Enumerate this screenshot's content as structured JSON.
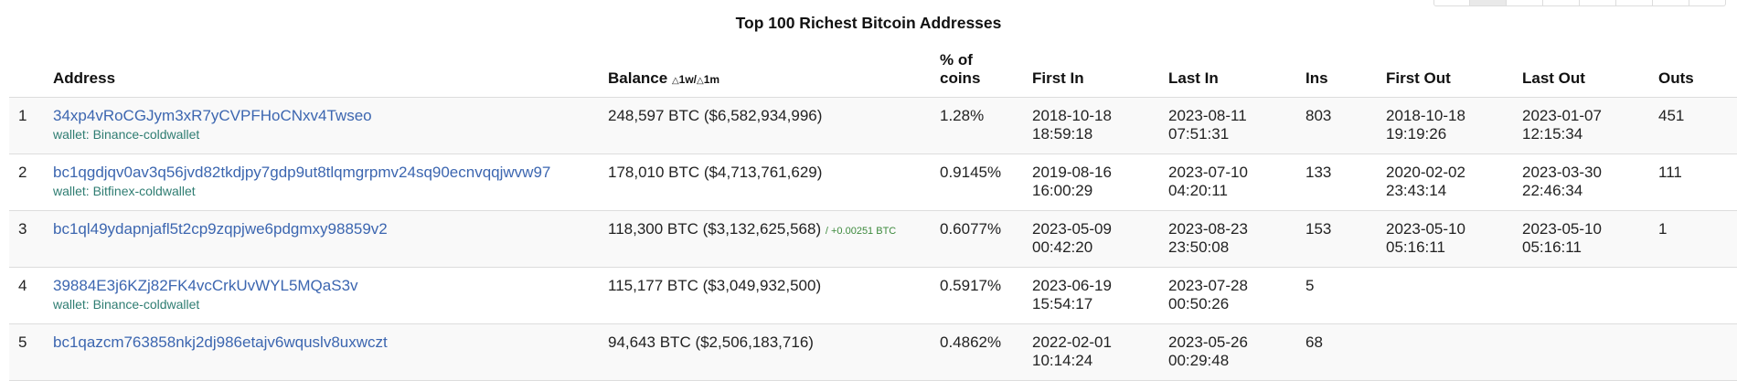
{
  "title": "Top 100 Richest Bitcoin Addresses",
  "pager": {
    "buttons": [
      "",
      "",
      "",
      "",
      "",
      "",
      "",
      ""
    ],
    "active_index": 1
  },
  "headers": {
    "rank": "",
    "address": "Address",
    "balance": "Balance",
    "balance_delta": "1w/",
    "balance_delta2": "1m",
    "delta_symbol": "△",
    "pct_line1": "% of",
    "pct_line2": "coins",
    "first_in": "First In",
    "last_in": "Last In",
    "ins": "Ins",
    "first_out": "First Out",
    "last_out": "Last Out",
    "outs": "Outs"
  },
  "rows": [
    {
      "rank": "1",
      "address": "34xp4vRoCGJym3xR7yCVPFHoCNxv4Twseo",
      "wallet": "wallet: Binance-coldwallet",
      "balance": "248,597 BTC ($6,582,934,996)",
      "change": "",
      "pct": "1.28%",
      "first_in_date": "2018-10-18",
      "first_in_time": "18:59:18",
      "last_in_date": "2023-08-11",
      "last_in_time": "07:51:31",
      "ins": "803",
      "first_out_date": "2018-10-18",
      "first_out_time": "19:19:26",
      "last_out_date": "2023-01-07",
      "last_out_time": "12:15:34",
      "outs": "451"
    },
    {
      "rank": "2",
      "address": "bc1qgdjqv0av3q56jvd82tkdjpy7gdp9ut8tlqmgrpmv24sq90ecnvqqjwvw97",
      "wallet": "wallet: Bitfinex-coldwallet",
      "balance": "178,010 BTC ($4,713,761,629)",
      "change": "",
      "pct": "0.9145%",
      "first_in_date": "2019-08-16",
      "first_in_time": "16:00:29",
      "last_in_date": "2023-07-10",
      "last_in_time": "04:20:11",
      "ins": "133",
      "first_out_date": "2020-02-02",
      "first_out_time": "23:43:14",
      "last_out_date": "2023-03-30",
      "last_out_time": "22:46:34",
      "outs": "111"
    },
    {
      "rank": "3",
      "address": "bc1ql49ydapnjafl5t2cp9zqpjwe6pdgmxy98859v2",
      "wallet": "",
      "balance": "118,300 BTC ($3,132,625,568)",
      "change": "/ +0.00251 BTC",
      "pct": "0.6077%",
      "first_in_date": "2023-05-09",
      "first_in_time": "00:42:20",
      "last_in_date": "2023-08-23",
      "last_in_time": "23:50:08",
      "ins": "153",
      "first_out_date": "2023-05-10",
      "first_out_time": "05:16:11",
      "last_out_date": "2023-05-10",
      "last_out_time": "05:16:11",
      "outs": "1"
    },
    {
      "rank": "4",
      "address": "39884E3j6KZj82FK4vcCrkUvWYL5MQaS3v",
      "wallet": "wallet: Binance-coldwallet",
      "balance": "115,177 BTC ($3,049,932,500)",
      "change": "",
      "pct": "0.5917%",
      "first_in_date": "2023-06-19",
      "first_in_time": "15:54:17",
      "last_in_date": "2023-07-28",
      "last_in_time": "00:50:26",
      "ins": "5",
      "first_out_date": "",
      "first_out_time": "",
      "last_out_date": "",
      "last_out_time": "",
      "outs": ""
    },
    {
      "rank": "5",
      "address": "bc1qazcm763858nkj2dj986etajv6wquslv8uxwczt",
      "wallet": "",
      "balance": "94,643 BTC ($2,506,183,716)",
      "change": "",
      "pct": "0.4862%",
      "first_in_date": "2022-02-01",
      "first_in_time": "10:14:24",
      "last_in_date": "2023-05-26",
      "last_in_time": "00:29:48",
      "ins": "68",
      "first_out_date": "",
      "first_out_time": "",
      "last_out_date": "",
      "last_out_time": "",
      "outs": ""
    }
  ]
}
